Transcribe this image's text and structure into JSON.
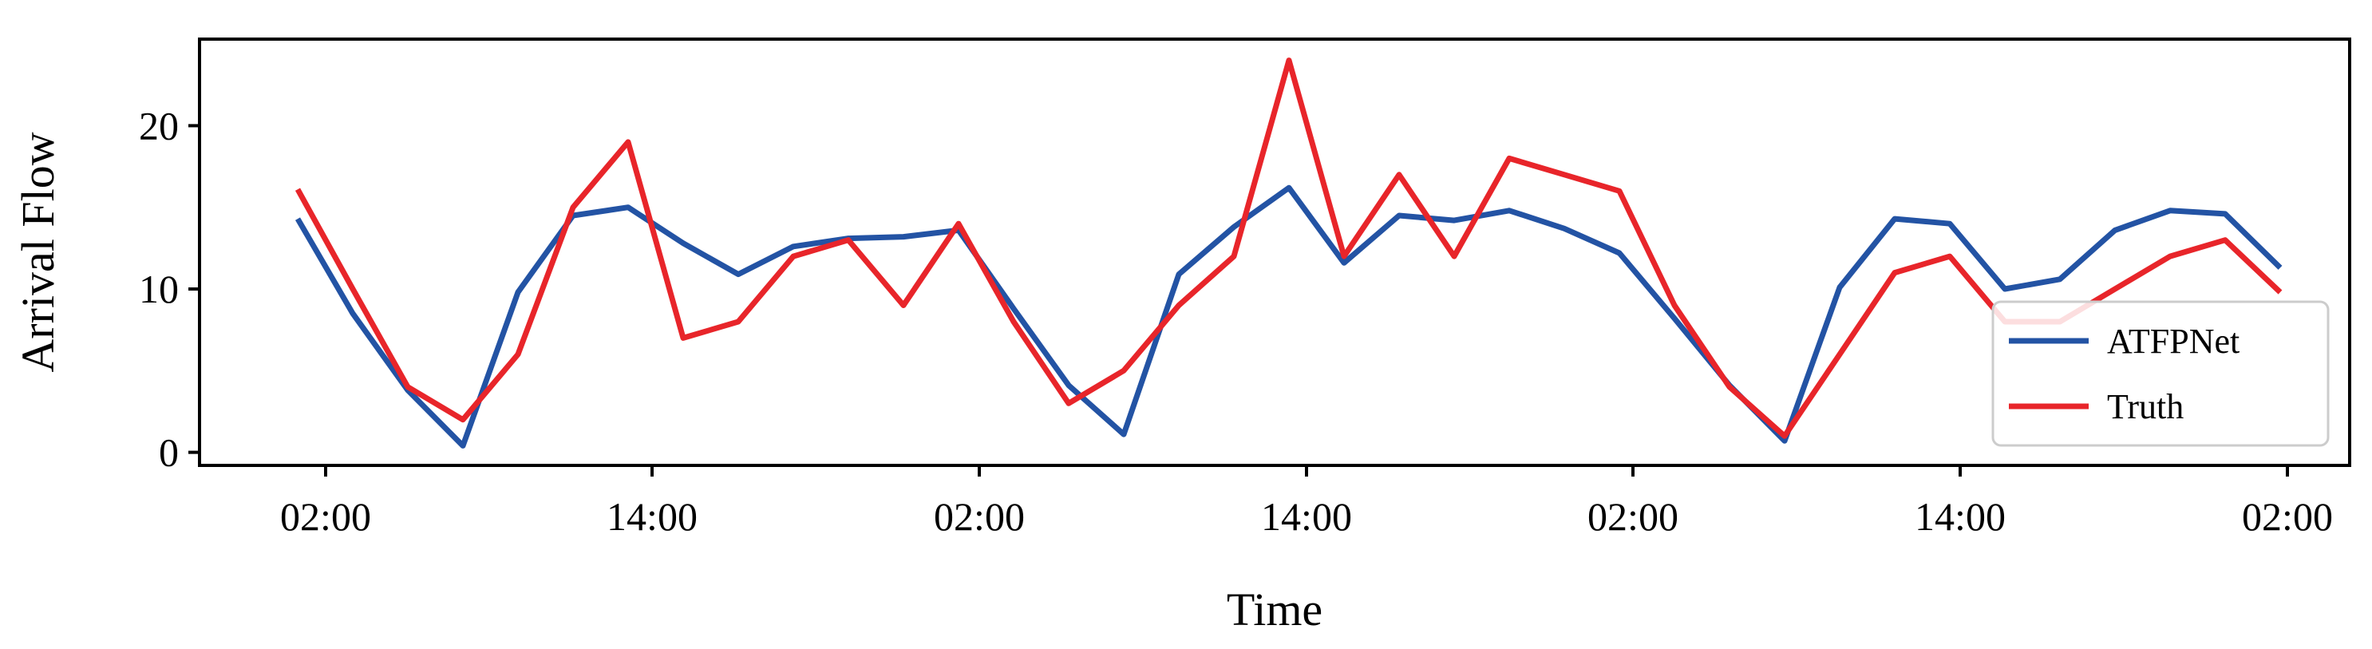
{
  "chart_data": {
    "type": "line",
    "xlabel": "Time",
    "ylabel": "Arrival Flow",
    "ylim": [
      -0.8,
      25.3
    ],
    "yticks": [
      0,
      10,
      20
    ],
    "xticks": [
      "02:00",
      "14:00",
      "02:00",
      "14:00",
      "02:00",
      "14:00",
      "02:00"
    ],
    "x": [
      0,
      1,
      2,
      3,
      4,
      5,
      6,
      7,
      8,
      9,
      10,
      11,
      12,
      13,
      14,
      15,
      16,
      17,
      18,
      19,
      20,
      21,
      22,
      23,
      24,
      25,
      26,
      27,
      28,
      29,
      30,
      31,
      32,
      33,
      34,
      35,
      36
    ],
    "grid": false,
    "legend_position": "bottom-right",
    "series": [
      {
        "name": "ATFPNet",
        "color": "#2353a4",
        "values": [
          14.3,
          8.5,
          3.8,
          0.4,
          9.8,
          14.5,
          15.0,
          12.8,
          10.9,
          12.6,
          13.1,
          13.2,
          13.6,
          8.8,
          4.1,
          1.1,
          10.9,
          13.8,
          16.2,
          11.6,
          14.5,
          14.2,
          14.8,
          13.7,
          12.2,
          8.2,
          4.1,
          0.7,
          10.1,
          14.3,
          14.0,
          10.0,
          10.6,
          13.6,
          14.8,
          14.6,
          11.3
        ]
      },
      {
        "name": "Truth",
        "color": "#e8252a",
        "values": [
          16.1,
          10.0,
          4.0,
          2.0,
          6.0,
          15.0,
          19.0,
          7.0,
          8.0,
          12.0,
          13.0,
          9.0,
          14.0,
          8.0,
          3.0,
          5.0,
          9.0,
          12.0,
          24.0,
          12.0,
          17.0,
          12.0,
          18.0,
          17.0,
          16.0,
          9.0,
          4.0,
          1.0,
          6.0,
          11.0,
          12.0,
          8.0,
          8.0,
          10.0,
          12.0,
          13.0,
          9.8
        ]
      }
    ]
  }
}
